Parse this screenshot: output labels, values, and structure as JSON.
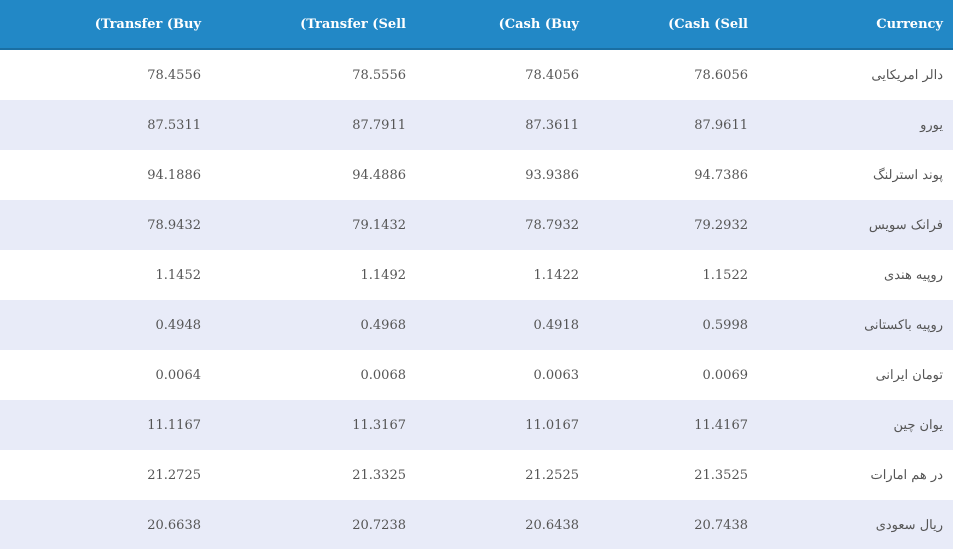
{
  "table": {
    "headers": {
      "transfer_buy": "(Transfer (Buy",
      "transfer_sell": "(Transfer (Sell",
      "cash_buy": "(Cash (Buy",
      "cash_sell": "(Cash (Sell",
      "currency": "Currency"
    },
    "rows": [
      {
        "currency": "دالر امریکایی",
        "cash_sell": "78.6056",
        "cash_buy": "78.4056",
        "transfer_sell": "78.5556",
        "transfer_buy": "78.4556"
      },
      {
        "currency": "یورو",
        "cash_sell": "87.9611",
        "cash_buy": "87.3611",
        "transfer_sell": "87.7911",
        "transfer_buy": "87.5311"
      },
      {
        "currency": "پوند استرلنگ",
        "cash_sell": "94.7386",
        "cash_buy": "93.9386",
        "transfer_sell": "94.4886",
        "transfer_buy": "94.1886"
      },
      {
        "currency": "فرانک سویس",
        "cash_sell": "79.2932",
        "cash_buy": "78.7932",
        "transfer_sell": "79.1432",
        "transfer_buy": "78.9432"
      },
      {
        "currency": "روپیه هندی",
        "cash_sell": "1.1522",
        "cash_buy": "1.1422",
        "transfer_sell": "1.1492",
        "transfer_buy": "1.1452"
      },
      {
        "currency": "روپیه باکستانی",
        "cash_sell": "0.5998",
        "cash_buy": "0.4918",
        "transfer_sell": "0.4968",
        "transfer_buy": "0.4948"
      },
      {
        "currency": "تومان ایرانی",
        "cash_sell": "0.0069",
        "cash_buy": "0.0063",
        "transfer_sell": "0.0068",
        "transfer_buy": "0.0064"
      },
      {
        "currency": "یوان چین",
        "cash_sell": "11.4167",
        "cash_buy": "11.0167",
        "transfer_sell": "11.3167",
        "transfer_buy": "11.1167"
      },
      {
        "currency": "در هم امارات",
        "cash_sell": "21.3525",
        "cash_buy": "21.2525",
        "transfer_sell": "21.3325",
        "transfer_buy": "21.2725"
      },
      {
        "currency": "ریال سعودی",
        "cash_sell": "20.7438",
        "cash_buy": "20.6438",
        "transfer_sell": "20.7238",
        "transfer_buy": "20.6638"
      }
    ]
  },
  "colors": {
    "header_bg": "#2288c6",
    "row_alt_bg": "#e8ebf8",
    "row_bg": "#ffffff"
  }
}
